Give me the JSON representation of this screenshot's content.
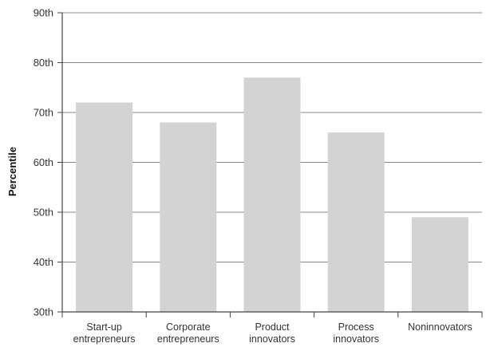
{
  "chart_data": {
    "type": "bar",
    "title": "",
    "xlabel": "",
    "ylabel": "Percentile",
    "ylim": [
      30,
      90
    ],
    "yticks": [
      {
        "value": 30,
        "label": "30th"
      },
      {
        "value": 40,
        "label": "40th"
      },
      {
        "value": 50,
        "label": "50th"
      },
      {
        "value": 60,
        "label": "60th"
      },
      {
        "value": 70,
        "label": "70th"
      },
      {
        "value": 80,
        "label": "80th"
      },
      {
        "value": 90,
        "label": "90th"
      }
    ],
    "categories": [
      [
        "Start-up",
        "entrepreneurs"
      ],
      [
        "Corporate",
        "entrepreneurs"
      ],
      [
        "Product",
        "innovators"
      ],
      [
        "Process",
        "innovators"
      ],
      [
        "Noninnovators"
      ]
    ],
    "values": [
      72,
      68,
      77,
      66,
      49
    ],
    "grid": true,
    "colors": {
      "bar": "#d3d3d3",
      "grid": "#888888",
      "axis": "#444444",
      "text": "#333333"
    }
  }
}
